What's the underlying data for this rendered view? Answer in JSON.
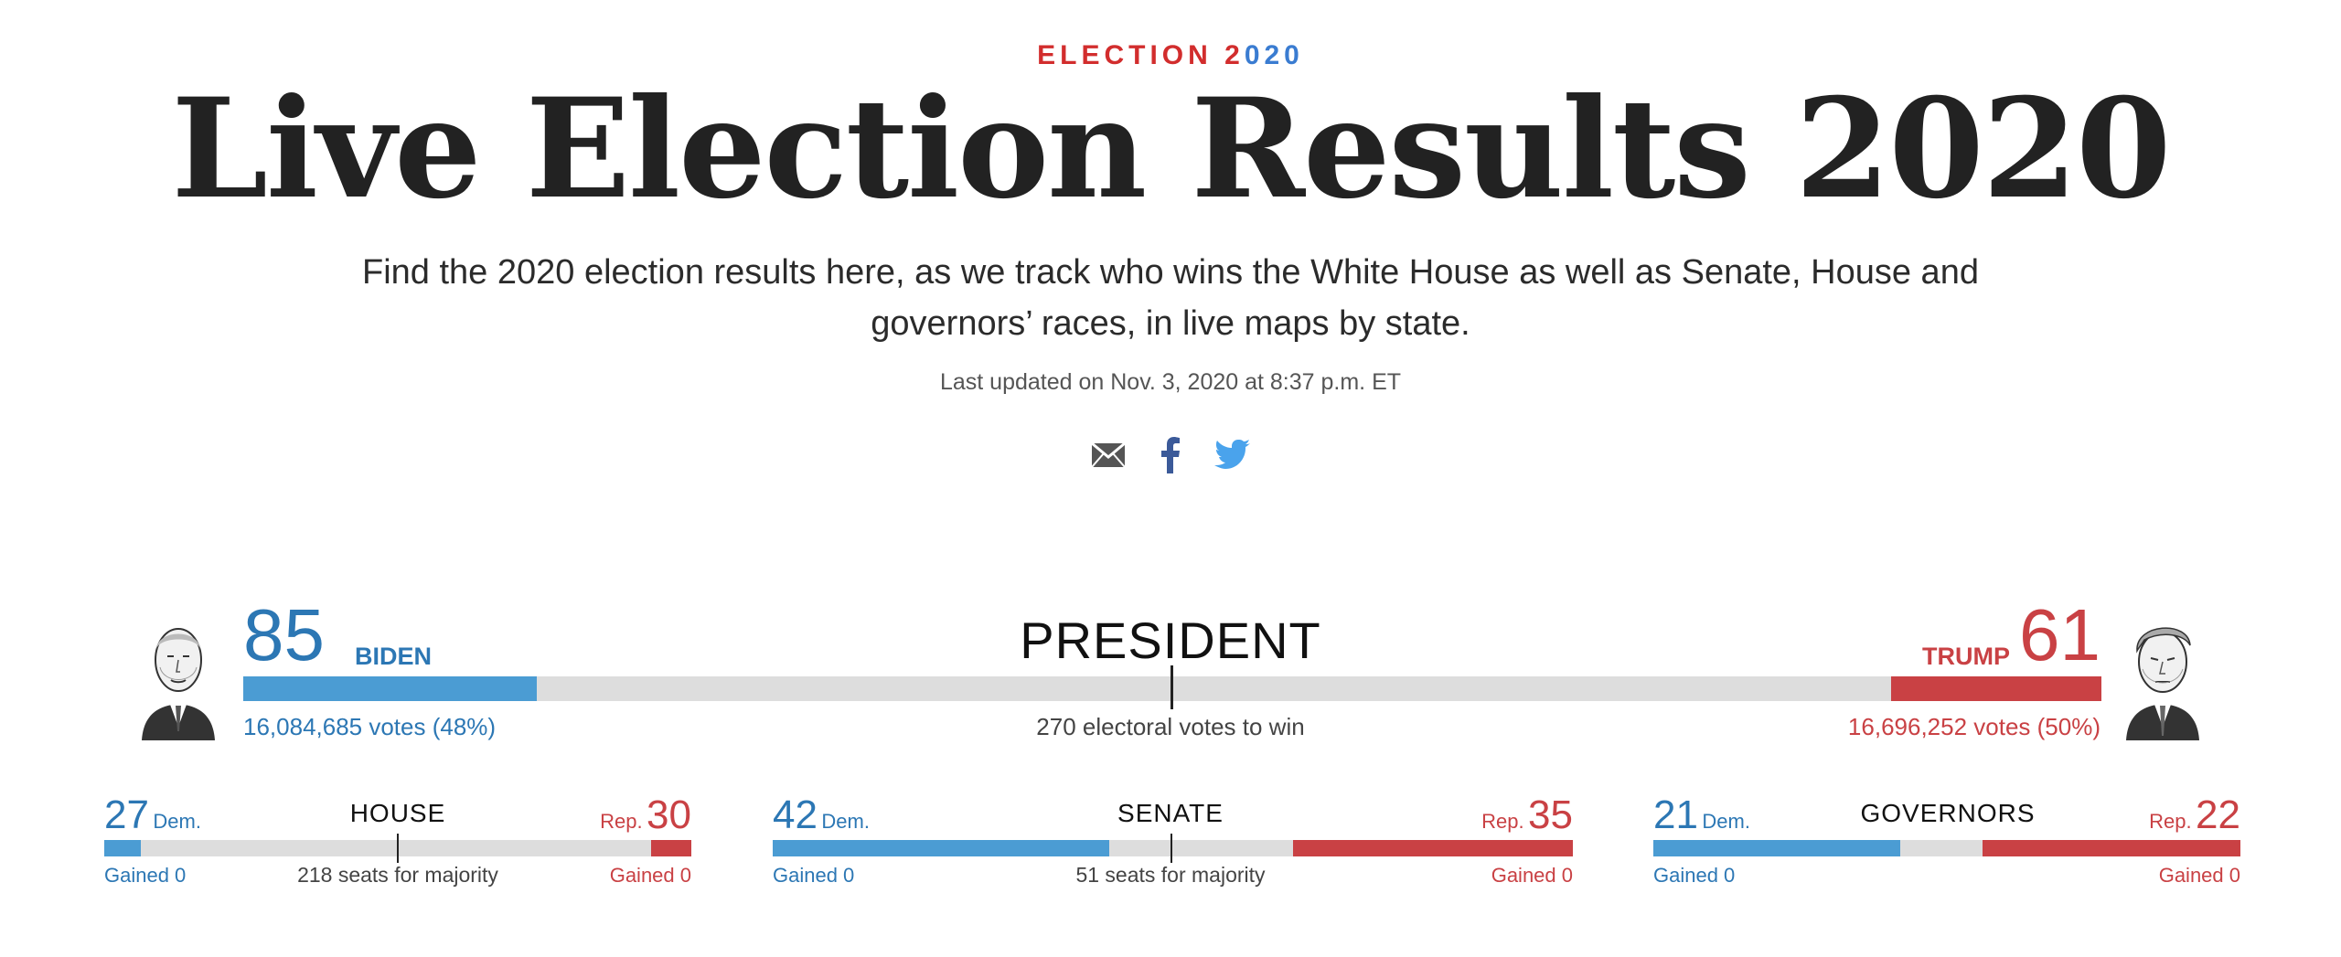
{
  "header": {
    "kicker_prefix": "ELECTION 2",
    "kicker_check": "0",
    "kicker_suffix": "20",
    "title": "Live Election Results 2020",
    "dek_line1": "Find the 2020 election results here, as we track who wins the White House as well as Senate, House and",
    "dek_line2": "governors’ races, in live maps by state.",
    "updated": "Last updated on Nov. 3, 2020 at 8:37 p.m. ET"
  },
  "share": {
    "items": [
      {
        "icon": "email-icon"
      },
      {
        "icon": "facebook-icon"
      },
      {
        "icon": "twitter-icon"
      }
    ]
  },
  "president": {
    "label": "PRESIDENT",
    "dem": {
      "name": "BIDEN",
      "electoral": "85",
      "votes": "16,084,685 votes (48%)",
      "electoral_value": 85
    },
    "rep": {
      "name": "TRUMP",
      "electoral": "61",
      "votes": "16,696,252 votes (50%)",
      "electoral_value": 61
    },
    "total": 538,
    "to_win": "270 electoral votes to win"
  },
  "races": [
    {
      "id": "house",
      "title": "HOUSE",
      "dem_num": "27",
      "dem_label": "Dem.",
      "rep_num": "30",
      "rep_label": "Rep.",
      "dem_gain": "Gained 0",
      "rep_gain": "Gained 0",
      "majority": "218 seats for majority",
      "dem_value": 27,
      "rep_value": 30,
      "total": 435
    },
    {
      "id": "senate",
      "title": "SENATE",
      "dem_num": "42",
      "dem_label": "Dem.",
      "rep_num": "35",
      "rep_label": "Rep.",
      "dem_gain": "Gained 0",
      "rep_gain": "Gained 0",
      "majority": "51 seats for majority",
      "dem_value": 42,
      "rep_value": 35,
      "total": 100
    },
    {
      "id": "governors",
      "title": "GOVERNORS",
      "dem_num": "21",
      "dem_label": "Dem.",
      "rep_num": "22",
      "rep_label": "Rep.",
      "dem_gain": "Gained 0",
      "rep_gain": "Gained 0",
      "majority": "",
      "dem_value": 21,
      "rep_value": 22,
      "total": 50
    }
  ],
  "colors": {
    "dem": "#4b9cd3",
    "rep": "#c94144",
    "neutral": "#dddddd",
    "accent": "#d22d2d"
  }
}
